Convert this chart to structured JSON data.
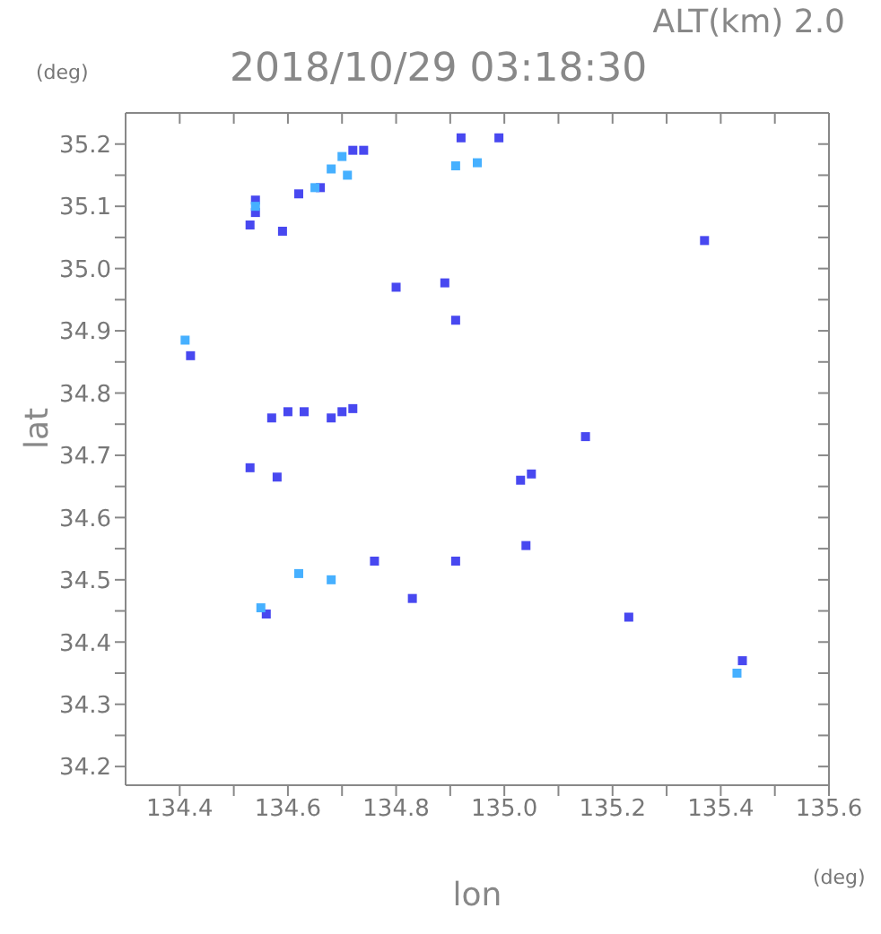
{
  "chart_data": {
    "type": "scatter",
    "title": "2018/10/29 03:18:30",
    "subtitle": "ALT(km) 2.0",
    "xlabel": "lon",
    "ylabel": "lat",
    "annotations": [
      "(deg)",
      "(deg)"
    ],
    "xlim": [
      134.3,
      135.6
    ],
    "ylim": [
      34.17,
      35.25
    ],
    "xticks": [
      134.4,
      {
        "value": 134.5,
        "label": null
      },
      134.6,
      {
        "value": 134.7,
        "label": null
      },
      134.8,
      {
        "value": 134.9,
        "label": null
      },
      {
        "value": 135,
        "label": "135.0"
      },
      {
        "value": 135.1,
        "label": null
      },
      135.2,
      {
        "value": 135.3,
        "label": null
      },
      135.4,
      {
        "value": 135.5,
        "label": null
      },
      135.6
    ],
    "yticks": [
      34.2,
      {
        "value": 34.25,
        "label": null
      },
      34.3,
      {
        "value": 34.35,
        "label": null
      },
      34.4,
      {
        "value": 34.45,
        "label": null
      },
      34.5,
      {
        "value": 34.55,
        "label": null
      },
      34.6,
      {
        "value": 34.65,
        "label": null
      },
      34.7,
      {
        "value": 34.75,
        "label": null
      },
      34.8,
      {
        "value": 34.85,
        "label": null
      },
      34.9,
      {
        "value": 34.95,
        "label": null
      },
      {
        "value": 35,
        "label": "35.0"
      },
      {
        "value": 35.05,
        "label": null
      },
      35.1,
      {
        "value": 35.15,
        "label": null
      },
      35.2
    ],
    "marker": "square",
    "series": [
      {
        "color": "#4848f0",
        "x": [
          134.53,
          134.54,
          134.54,
          134.62,
          134.66,
          134.72,
          134.74,
          134.92,
          134.99,
          134.59,
          134.8,
          134.89,
          134.91,
          135.37,
          134.42,
          134.57,
          134.6,
          134.63,
          134.68,
          134.7,
          134.72,
          134.53,
          134.58,
          135.15,
          135.05,
          135.03,
          135.04,
          134.76,
          134.91,
          134.83,
          134.56,
          135.23,
          135.44
        ],
        "values": [
          35.07,
          35.09,
          35.11,
          35.12,
          35.13,
          35.19,
          35.19,
          35.21,
          35.21,
          35.06,
          34.97,
          34.977,
          34.917,
          35.045,
          34.86,
          34.76,
          34.77,
          34.77,
          34.76,
          34.77,
          34.775,
          34.68,
          34.665,
          34.73,
          34.67,
          34.66,
          34.555,
          34.53,
          34.53,
          34.47,
          34.445,
          34.44,
          34.37
        ]
      },
      {
        "color": "#46b0ff",
        "x": [
          134.54,
          134.65,
          134.68,
          134.7,
          134.71,
          134.91,
          134.95,
          134.41,
          134.62,
          134.68,
          134.55,
          135.43
        ],
        "values": [
          35.1,
          35.13,
          35.16,
          35.18,
          35.15,
          35.165,
          35.17,
          34.885,
          34.51,
          34.5,
          34.455,
          34.35
        ]
      }
    ]
  }
}
